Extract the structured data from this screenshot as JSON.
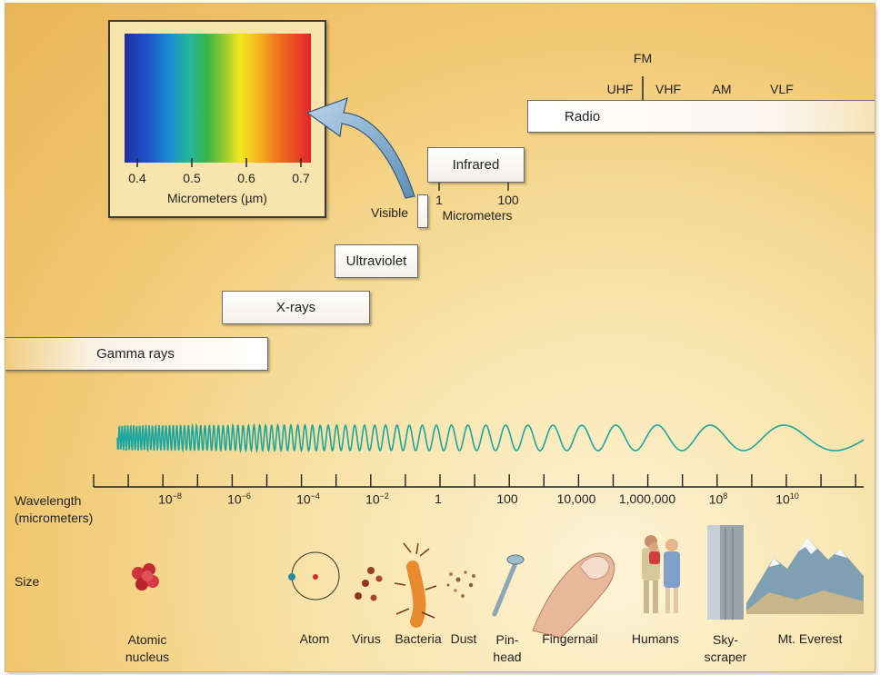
{
  "inset": {
    "ticks": [
      "0.4",
      "0.5",
      "0.6",
      "0.7"
    ],
    "axis_label": "Micrometers (µm)"
  },
  "bands": {
    "radio": "Radio",
    "infrared": "Infrared",
    "visible": "Visible",
    "ultraviolet": "Ultraviolet",
    "xrays": "X-rays",
    "gamma": "Gamma rays"
  },
  "radio_subbands": {
    "fm": "FM",
    "uhf": "UHF",
    "vhf": "VHF",
    "am": "AM",
    "vlf": "VLF"
  },
  "infrared_scale": {
    "tick1": "1",
    "tick2": "100",
    "unit": "Micrometers"
  },
  "wavelength_axis": {
    "title_line1": "Wavelength",
    "title_line2": "(micrometers)",
    "labels": [
      {
        "base": "10",
        "exp": "−8"
      },
      {
        "base": "10",
        "exp": "−6"
      },
      {
        "base": "10",
        "exp": "−4"
      },
      {
        "base": "10",
        "exp": "−2"
      },
      {
        "base": "1",
        "exp": ""
      },
      {
        "base": "100",
        "exp": ""
      },
      {
        "base": "10,000",
        "exp": ""
      },
      {
        "base": "1,000,000",
        "exp": ""
      },
      {
        "base": "10",
        "exp": "8"
      },
      {
        "base": "10",
        "exp": "10"
      }
    ]
  },
  "size_row": {
    "title": "Size",
    "items": [
      {
        "line1": "Atomic",
        "line2": "nucleus",
        "icon": "atomic-nucleus-icon"
      },
      {
        "line1": "Atom",
        "line2": "",
        "icon": "atom-icon"
      },
      {
        "line1": "Virus",
        "line2": "",
        "icon": "virus-icon"
      },
      {
        "line1": "Bacteria",
        "line2": "",
        "icon": "bacteria-icon"
      },
      {
        "line1": "Dust",
        "line2": "",
        "icon": "dust-icon"
      },
      {
        "line1": "Pin-",
        "line2": "head",
        "icon": "pinhead-icon"
      },
      {
        "line1": "Fingernail",
        "line2": "",
        "icon": "fingernail-icon"
      },
      {
        "line1": "Humans",
        "line2": "",
        "icon": "humans-icon"
      },
      {
        "line1": "Sky-",
        "line2": "scraper",
        "icon": "skyscraper-icon"
      },
      {
        "line1": "Mt. Everest",
        "line2": "",
        "icon": "mountain-icon"
      }
    ]
  },
  "colors": {
    "wave": "#1aa6a0",
    "background": "#f4d68a",
    "arrow": "#8fb7d6"
  }
}
